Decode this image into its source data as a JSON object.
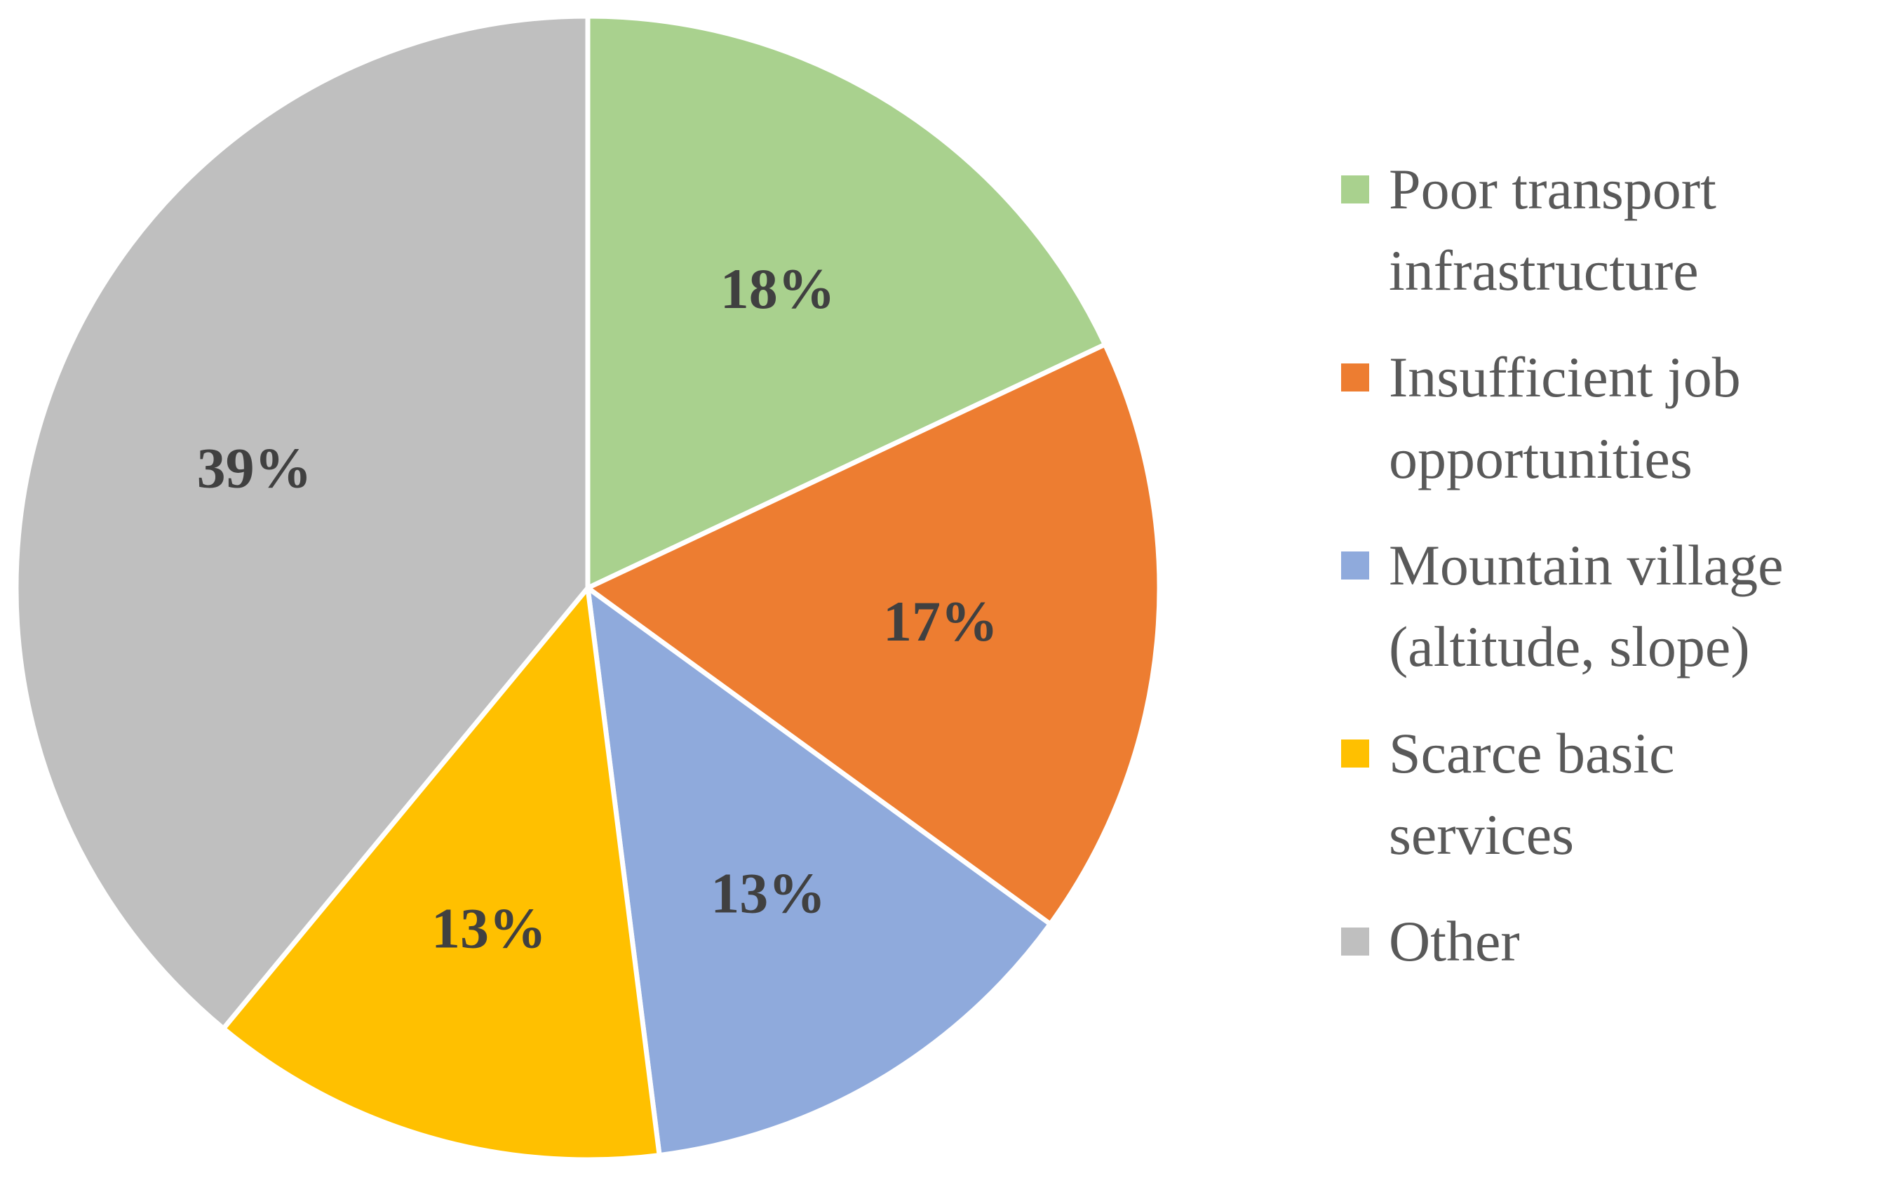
{
  "chart_data": {
    "type": "pie",
    "title": "",
    "start_angle_deg": 0,
    "direction": "clockwise",
    "legend_position": "right",
    "slices": [
      {
        "label": "Poor transport\ninfrastructure",
        "value": 18,
        "display": "18%",
        "color": "#A9D18E"
      },
      {
        "label": "Insufficient job\nopportunities",
        "value": 17,
        "display": "17%",
        "color": "#ED7D31"
      },
      {
        "label": "Mountain village\n(altitude, slope)",
        "value": 13,
        "display": "13%",
        "color": "#8FAADC"
      },
      {
        "label": "Scarce basic\nservices",
        "value": 13,
        "display": "13%",
        "color": "#FFC000"
      },
      {
        "label": "Other",
        "value": 39,
        "display": "39%",
        "color": "#BFBFBF"
      }
    ]
  }
}
